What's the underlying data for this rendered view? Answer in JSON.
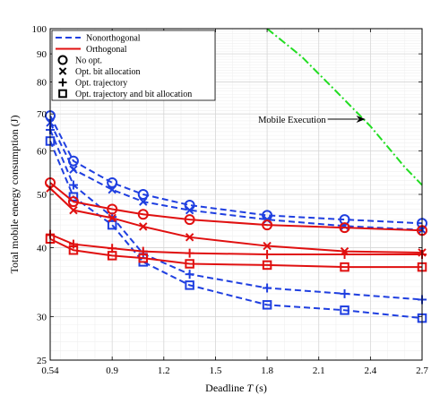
{
  "chart_data": {
    "type": "line",
    "xlabel_prefix": "Deadline ",
    "xlabel_var": "T",
    "xlabel_suffix": " (s)",
    "ylabel": "Total mobile energy consumption (J)",
    "x_ticks": [
      "0.54",
      "0.9",
      "1.2",
      "1.5",
      "1.8",
      "2.1",
      "2.4",
      "2.7"
    ],
    "x_tick_values": [
      0.54,
      0.9,
      1.2,
      1.5,
      1.8,
      2.1,
      2.4,
      2.7
    ],
    "y_ticks": [
      "25",
      "30",
      "40",
      "50",
      "60",
      "70",
      "80",
      "90",
      "100"
    ],
    "y_tick_values": [
      25,
      30,
      40,
      50,
      60,
      70,
      80,
      90,
      100
    ],
    "xlim": [
      0.54,
      2.7
    ],
    "ylim": [
      25,
      100
    ],
    "y_scale": "log",
    "grid": true,
    "legend_position": "top-left",
    "colors": {
      "nonorthogonal": "#1f3fe0",
      "orthogonal": "#e01010",
      "mobile": "#22dd22"
    },
    "legend": [
      {
        "label": "Nonorthogonal",
        "kind": "line",
        "style": "dashed",
        "color": "#1f3fe0"
      },
      {
        "label": "Orthogonal",
        "kind": "line",
        "style": "solid",
        "color": "#e01010"
      },
      {
        "label": "No opt.",
        "kind": "marker",
        "marker": "circle"
      },
      {
        "label": "Opt. bit allocation",
        "kind": "marker",
        "marker": "x"
      },
      {
        "label": "Opt. trajectory",
        "kind": "marker",
        "marker": "plus"
      },
      {
        "label": "Opt. trajectory and bit allocation",
        "kind": "marker",
        "marker": "square"
      }
    ],
    "x": [
      0.54,
      0.675,
      0.9,
      1.08,
      1.35,
      1.8,
      2.25,
      2.7
    ],
    "series": [
      {
        "group": "Nonorthogonal",
        "marker": "circle",
        "values": [
          69.5,
          57.5,
          52.5,
          50.0,
          47.8,
          45.8,
          45.0,
          44.3
        ]
      },
      {
        "group": "Nonorthogonal",
        "marker": "x",
        "values": [
          67.5,
          55.5,
          51.0,
          48.5,
          46.8,
          45.0,
          43.8,
          43.1
        ]
      },
      {
        "group": "Nonorthogonal",
        "marker": "plus",
        "values": [
          65.5,
          52.0,
          45.5,
          39.0,
          35.8,
          33.8,
          33.0,
          32.2
        ]
      },
      {
        "group": "Nonorthogonal",
        "marker": "square",
        "values": [
          62.5,
          49.5,
          44.0,
          37.7,
          34.2,
          31.5,
          30.8,
          29.8
        ]
      },
      {
        "group": "Orthogonal",
        "marker": "circle",
        "values": [
          52.5,
          48.5,
          47.0,
          46.0,
          45.0,
          44.0,
          43.5,
          43.0
        ]
      },
      {
        "group": "Orthogonal",
        "marker": "x",
        "values": [
          51.3,
          46.8,
          45.3,
          43.7,
          41.8,
          40.3,
          39.4,
          39.2
        ]
      },
      {
        "group": "Orthogonal",
        "marker": "plus",
        "values": [
          42.3,
          40.6,
          39.9,
          39.4,
          39.1,
          38.9,
          38.9,
          38.9
        ]
      },
      {
        "group": "Orthogonal",
        "marker": "square",
        "values": [
          41.5,
          39.6,
          38.7,
          38.3,
          37.4,
          37.2,
          36.9,
          36.9
        ]
      }
    ],
    "mobile_execution": {
      "label": "Mobile Execution",
      "x": [
        1.8,
        2.0,
        2.2,
        2.4,
        2.6,
        2.7
      ],
      "values": [
        100,
        89,
        77,
        66.5,
        56,
        52
      ],
      "arrow_target": [
        2.37,
        68.5
      ],
      "label_anchor_y": 68.5
    }
  }
}
